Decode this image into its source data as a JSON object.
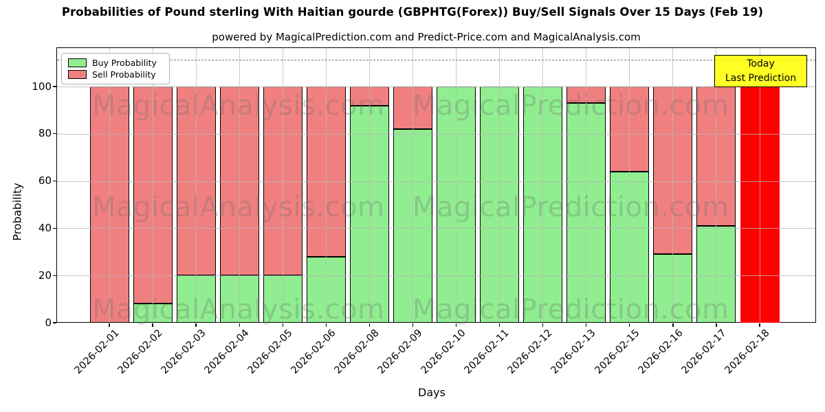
{
  "chart_data": {
    "type": "bar",
    "stacked": true,
    "title": "Probabilities of Pound sterling With Haitian gourde (GBPHTG(Forex)) Buy/Sell Signals Over 15 Days (Feb 19)",
    "subtitle": "powered by MagicalPrediction.com and Predict-Price.com and MagicalAnalysis.com",
    "xlabel": "Days",
    "ylabel": "Probability",
    "categories": [
      "2026-02-01",
      "2026-02-02",
      "2026-02-03",
      "2026-02-04",
      "2026-02-05",
      "2026-02-06",
      "2026-02-08",
      "2026-02-09",
      "2026-02-10",
      "2026-02-11",
      "2026-02-12",
      "2026-02-13",
      "2026-02-15",
      "2026-02-16",
      "2026-02-17",
      "2026-02-18"
    ],
    "series": [
      {
        "name": "Buy Probability",
        "color": "#90EE90",
        "values": [
          0,
          8,
          20,
          20,
          20,
          28,
          92,
          82,
          100,
          100,
          100,
          93,
          64,
          29,
          41,
          0
        ]
      },
      {
        "name": "Sell Probability",
        "color": "#F08080",
        "values": [
          100,
          92,
          80,
          80,
          80,
          72,
          8,
          18,
          0,
          0,
          0,
          7,
          36,
          71,
          59,
          100
        ]
      }
    ],
    "today_bar": {
      "category": "2026-02-18",
      "index": 15,
      "color": "#FF0000",
      "value": 100
    },
    "yticks": [
      0,
      20,
      40,
      60,
      80,
      100
    ],
    "ylim": [
      0,
      117
    ],
    "dashed_line_y": 110,
    "grid": true,
    "legend": {
      "position": "upper left"
    },
    "annotation": {
      "lines": [
        "Today",
        "Last Prediction"
      ],
      "bg_color": "#FFFF00"
    },
    "watermark_left": "MagicalAnalysis.com",
    "watermark_right": "MagicalPrediction.com",
    "colors": {
      "edge": "#000000",
      "dashed_line": "#7a7a7a",
      "annotation_bg": "#FFFF00"
    }
  }
}
